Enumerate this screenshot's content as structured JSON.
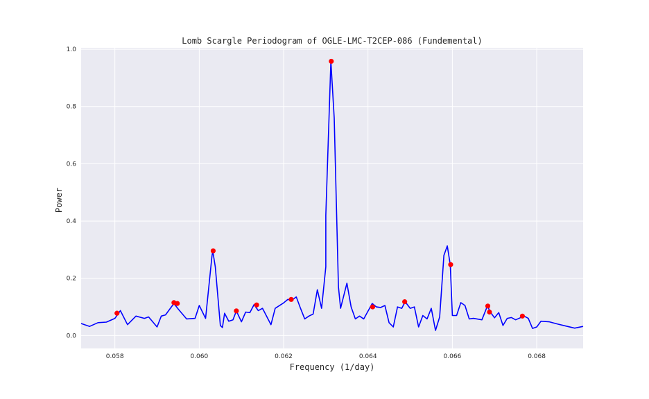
{
  "chart_data": {
    "type": "line",
    "title": "Lomb Scargle Periodogram of OGLE-LMC-T2CEP-086 (Fundemental)",
    "xlabel": "Frequency (1/day)",
    "ylabel": "Power",
    "xlim": [
      0.0572,
      0.0691
    ],
    "ylim": [
      -0.045,
      1.005
    ],
    "xticks": [
      0.058,
      0.06,
      0.062,
      0.064,
      0.066,
      0.068
    ],
    "xtick_labels": [
      "0.058",
      "0.060",
      "0.062",
      "0.064",
      "0.066",
      "0.068"
    ],
    "yticks": [
      0.0,
      0.2,
      0.4,
      0.6,
      0.8,
      1.0
    ],
    "ytick_labels": [
      "0.0",
      "0.2",
      "0.4",
      "0.6",
      "0.8",
      "1.0"
    ],
    "grid": true,
    "legend": "none",
    "series": [
      {
        "style": "line",
        "color": "#0000ff",
        "points": [
          [
            0.0572,
            0.042
          ],
          [
            0.0574,
            0.032
          ],
          [
            0.0576,
            0.045
          ],
          [
            0.0578,
            0.047
          ],
          [
            0.058,
            0.06
          ],
          [
            0.05813,
            0.087
          ],
          [
            0.0583,
            0.038
          ],
          [
            0.0585,
            0.068
          ],
          [
            0.0587,
            0.06
          ],
          [
            0.0588,
            0.065
          ],
          [
            0.059,
            0.03
          ],
          [
            0.0591,
            0.068
          ],
          [
            0.0592,
            0.072
          ],
          [
            0.0594,
            0.112
          ],
          [
            0.0595,
            0.093
          ],
          [
            0.0597,
            0.058
          ],
          [
            0.0599,
            0.06
          ],
          [
            0.06,
            0.105
          ],
          [
            0.06015,
            0.06
          ],
          [
            0.0603,
            0.275
          ],
          [
            0.06032,
            0.296
          ],
          [
            0.06038,
            0.24
          ],
          [
            0.0605,
            0.035
          ],
          [
            0.06055,
            0.028
          ],
          [
            0.0606,
            0.078
          ],
          [
            0.0607,
            0.05
          ],
          [
            0.0608,
            0.055
          ],
          [
            0.06088,
            0.086
          ],
          [
            0.061,
            0.048
          ],
          [
            0.0611,
            0.082
          ],
          [
            0.0612,
            0.08
          ],
          [
            0.0613,
            0.108
          ],
          [
            0.0614,
            0.087
          ],
          [
            0.0615,
            0.095
          ],
          [
            0.0617,
            0.038
          ],
          [
            0.0618,
            0.095
          ],
          [
            0.062,
            0.114
          ],
          [
            0.0621,
            0.126
          ],
          [
            0.0622,
            0.124
          ],
          [
            0.0623,
            0.135
          ],
          [
            0.0624,
            0.095
          ],
          [
            0.0625,
            0.058
          ],
          [
            0.0626,
            0.068
          ],
          [
            0.0627,
            0.075
          ],
          [
            0.0628,
            0.16
          ],
          [
            0.0629,
            0.095
          ],
          [
            0.063,
            0.24
          ],
          [
            0.063,
            0.42
          ],
          [
            0.0631,
            0.87
          ],
          [
            0.06312,
            0.958
          ],
          [
            0.0632,
            0.76
          ],
          [
            0.0633,
            0.17
          ],
          [
            0.06335,
            0.095
          ],
          [
            0.0635,
            0.183
          ],
          [
            0.0636,
            0.1
          ],
          [
            0.0637,
            0.058
          ],
          [
            0.0638,
            0.068
          ],
          [
            0.0639,
            0.058
          ],
          [
            0.0641,
            0.112
          ],
          [
            0.0642,
            0.1
          ],
          [
            0.0643,
            0.098
          ],
          [
            0.0644,
            0.105
          ],
          [
            0.0645,
            0.045
          ],
          [
            0.0646,
            0.03
          ],
          [
            0.0647,
            0.1
          ],
          [
            0.0648,
            0.095
          ],
          [
            0.06488,
            0.118
          ],
          [
            0.065,
            0.095
          ],
          [
            0.0651,
            0.1
          ],
          [
            0.0652,
            0.03
          ],
          [
            0.0653,
            0.07
          ],
          [
            0.0654,
            0.058
          ],
          [
            0.0655,
            0.095
          ],
          [
            0.0656,
            0.018
          ],
          [
            0.0657,
            0.065
          ],
          [
            0.0658,
            0.28
          ],
          [
            0.06588,
            0.313
          ],
          [
            0.06595,
            0.247
          ],
          [
            0.066,
            0.07
          ],
          [
            0.0661,
            0.07
          ],
          [
            0.0662,
            0.115
          ],
          [
            0.0663,
            0.105
          ],
          [
            0.0664,
            0.058
          ],
          [
            0.0665,
            0.06
          ],
          [
            0.0667,
            0.055
          ],
          [
            0.06683,
            0.103
          ],
          [
            0.0669,
            0.082
          ],
          [
            0.067,
            0.062
          ],
          [
            0.0671,
            0.08
          ],
          [
            0.0672,
            0.035
          ],
          [
            0.0673,
            0.06
          ],
          [
            0.0674,
            0.063
          ],
          [
            0.0675,
            0.055
          ],
          [
            0.0677,
            0.068
          ],
          [
            0.0678,
            0.06
          ],
          [
            0.0679,
            0.025
          ],
          [
            0.068,
            0.03
          ],
          [
            0.0681,
            0.05
          ],
          [
            0.0683,
            0.048
          ],
          [
            0.0685,
            0.04
          ],
          [
            0.0687,
            0.033
          ],
          [
            0.0689,
            0.026
          ],
          [
            0.0691,
            0.032
          ]
        ]
      },
      {
        "style": "markers",
        "color": "#ff0000",
        "points": [
          [
            0.05805,
            0.078
          ],
          [
            0.0594,
            0.115
          ],
          [
            0.05948,
            0.112
          ],
          [
            0.06033,
            0.296
          ],
          [
            0.06088,
            0.086
          ],
          [
            0.06136,
            0.107
          ],
          [
            0.06218,
            0.126
          ],
          [
            0.06313,
            0.958
          ],
          [
            0.06411,
            0.1
          ],
          [
            0.06487,
            0.118
          ],
          [
            0.06596,
            0.248
          ],
          [
            0.06684,
            0.103
          ],
          [
            0.06688,
            0.082
          ],
          [
            0.06766,
            0.068
          ]
        ]
      }
    ]
  }
}
